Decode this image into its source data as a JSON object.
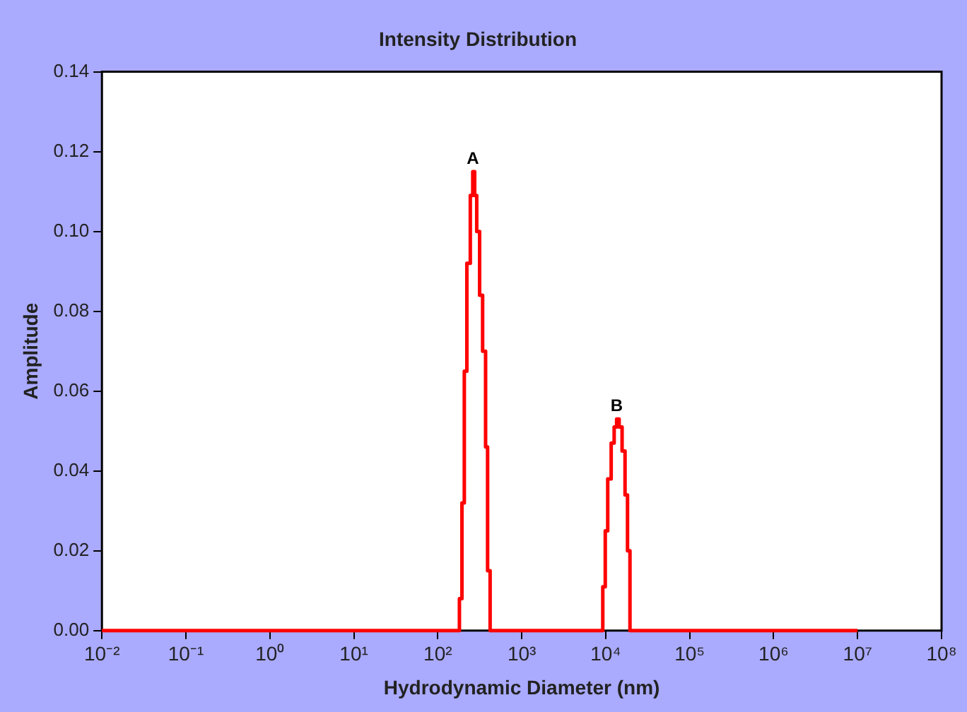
{
  "chart_data": {
    "type": "step",
    "title": "Intensity Distribution",
    "xlabel": "Hydrodynamic Diameter (nm)",
    "ylabel": "Amplitude",
    "log": "x",
    "grid": false,
    "legend": false,
    "marker": "none",
    "xlim": [
      0.01,
      100000000
    ],
    "xticks": [
      {
        "value": 0.01,
        "label": "10⁻²"
      },
      {
        "value": 0.1,
        "label": "10⁻¹"
      },
      {
        "value": 1,
        "label": "10⁰"
      },
      {
        "value": 10,
        "label": "10¹"
      },
      {
        "value": 100,
        "label": "10²"
      },
      {
        "value": 1000,
        "label": "10³"
      },
      {
        "value": 10000,
        "label": "10⁴"
      },
      {
        "value": 100000,
        "label": "10⁵"
      },
      {
        "value": 1000000,
        "label": "10⁶"
      },
      {
        "value": 10000000,
        "label": "10⁷"
      },
      {
        "value": 100000000,
        "label": "10⁸"
      }
    ],
    "ylim": [
      0,
      0.14
    ],
    "yticks": [
      {
        "value": 0,
        "label": "0.00"
      },
      {
        "value": 0.02,
        "label": "0.02"
      },
      {
        "value": 0.04,
        "label": "0.04"
      },
      {
        "value": 0.06,
        "label": "0.06"
      },
      {
        "value": 0.08,
        "label": "0.08"
      },
      {
        "value": 0.1,
        "label": "0.10"
      },
      {
        "value": 0.12,
        "label": "0.12"
      },
      {
        "value": 0.14,
        "label": "0.14"
      }
    ],
    "series": [
      {
        "color": "#ff0000",
        "x": [
          0.01,
          181,
          194,
          207,
          222,
          244,
          261,
          275,
          291,
          315,
          342,
          371,
          392,
          420,
          9230,
          9880,
          10570,
          11620,
          12610,
          13490,
          14450,
          15670,
          16990,
          18190,
          19450,
          10000000
        ],
        "values": [
          0,
          0.008,
          0.032,
          0.065,
          0.092,
          0.109,
          0.115,
          0.109,
          0.1,
          0.084,
          0.07,
          0.046,
          0.015,
          0,
          0.011,
          0.025,
          0.038,
          0.047,
          0.051,
          0.053,
          0.051,
          0.045,
          0.034,
          0.02,
          0,
          0
        ]
      }
    ],
    "annotations": [
      {
        "text": "A",
        "x": 261,
        "y": 0.115
      },
      {
        "text": "B",
        "x": 13490,
        "y": 0.053
      }
    ]
  }
}
